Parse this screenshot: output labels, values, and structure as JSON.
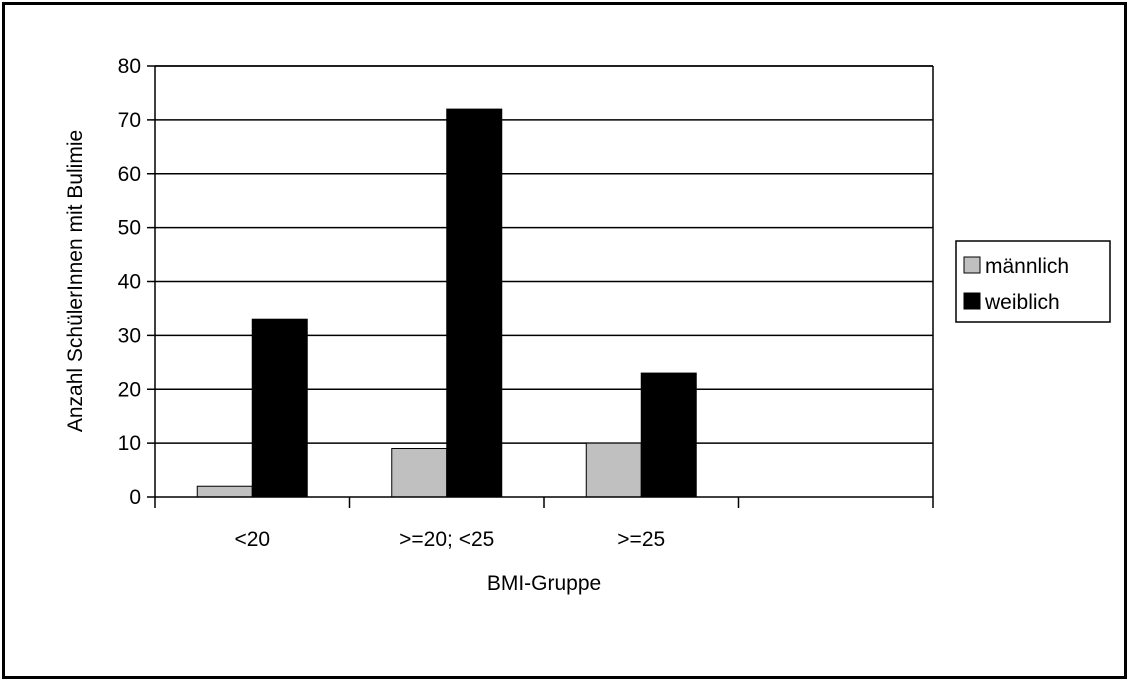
{
  "chart_data": {
    "type": "bar",
    "title": "",
    "xlabel": "BMI-Gruppe",
    "ylabel": "Anzahl SchülerInnen mit Bulimie",
    "categories": [
      "<20",
      ">=20; <25",
      ">=25",
      ""
    ],
    "series": [
      {
        "name": "männlich",
        "color": "#c0c0c0",
        "values": [
          2,
          9,
          10,
          null
        ]
      },
      {
        "name": "weiblich",
        "color": "#000000",
        "values": [
          33,
          72,
          23,
          null
        ]
      }
    ],
    "ylim": [
      0,
      80
    ],
    "yticks": [
      0,
      10,
      20,
      30,
      40,
      50,
      60,
      70,
      80
    ],
    "grid": true,
    "legend_position": "right"
  }
}
